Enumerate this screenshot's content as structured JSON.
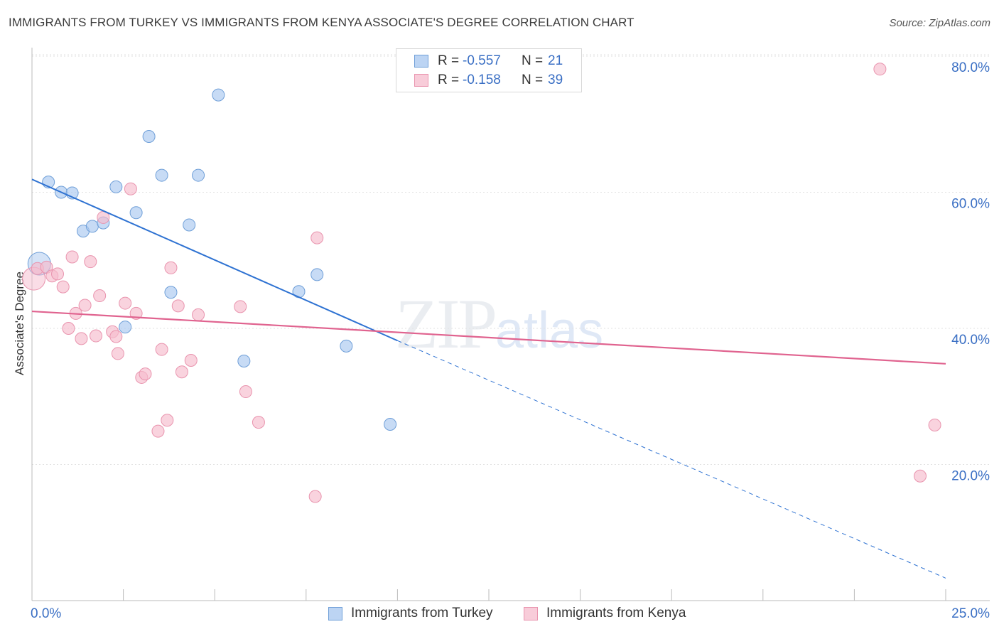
{
  "header": {
    "title": "IMMIGRANTS FROM TURKEY VS IMMIGRANTS FROM KENYA ASSOCIATE'S DEGREE CORRELATION CHART",
    "source": "Source: ZipAtlas.com"
  },
  "watermark": {
    "zip": "ZIP",
    "atlas": "atlas"
  },
  "legend_top": {
    "rows": [
      {
        "r_label": "R =",
        "r_value": "-0.557",
        "n_label": "N =",
        "n_value": "21"
      },
      {
        "r_label": "R =",
        "r_value": "-0.158",
        "n_label": "N =",
        "n_value": "39"
      }
    ]
  },
  "legend_bottom": {
    "items": [
      {
        "label": "Immigrants from Turkey"
      },
      {
        "label": "Immigrants from Kenya"
      }
    ]
  },
  "chart_data": {
    "type": "scatter",
    "title": "IMMIGRANTS FROM TURKEY VS IMMIGRANTS FROM KENYA ASSOCIATE'S DEGREE CORRELATION CHART",
    "xlabel": "",
    "ylabel": "Associate's Degree",
    "xlim": [
      0,
      25
    ],
    "ylim": [
      0,
      83
    ],
    "x_tick_labels": {
      "left": "0.0%",
      "right": "25.0%"
    },
    "y_ticks": [
      20,
      40,
      60,
      80
    ],
    "y_tick_labels": [
      "20.0%",
      "40.0%",
      "60.0%",
      "80.0%"
    ],
    "grid": true,
    "colors": {
      "turkey_fill": "#a9c8ef",
      "turkey_stroke": "#6f9fd8",
      "turkey_line": "#2e72d2",
      "kenya_fill": "#f6bccd",
      "kenya_stroke": "#e994ae",
      "kenya_line": "#e0638f",
      "tick_label": "#3a6fc4"
    },
    "series": [
      {
        "name": "Immigrants from Turkey",
        "points": [
          {
            "x": 0.2,
            "y": 49.5,
            "big": true
          },
          {
            "x": 0.45,
            "y": 61.5
          },
          {
            "x": 0.8,
            "y": 60.0
          },
          {
            "x": 1.1,
            "y": 59.9
          },
          {
            "x": 1.4,
            "y": 54.3
          },
          {
            "x": 1.65,
            "y": 55.0
          },
          {
            "x": 1.95,
            "y": 55.5
          },
          {
            "x": 2.3,
            "y": 60.8
          },
          {
            "x": 2.55,
            "y": 40.2
          },
          {
            "x": 2.85,
            "y": 57.0
          },
          {
            "x": 3.2,
            "y": 68.2
          },
          {
            "x": 3.55,
            "y": 62.5
          },
          {
            "x": 3.8,
            "y": 45.3
          },
          {
            "x": 4.3,
            "y": 55.2
          },
          {
            "x": 4.55,
            "y": 62.5
          },
          {
            "x": 5.1,
            "y": 74.3
          },
          {
            "x": 5.8,
            "y": 35.2
          },
          {
            "x": 7.3,
            "y": 45.4
          },
          {
            "x": 7.8,
            "y": 47.9
          },
          {
            "x": 8.6,
            "y": 37.4
          },
          {
            "x": 9.8,
            "y": 25.9
          }
        ],
        "trend": {
          "x1": 0,
          "y1": 61.9,
          "x2": 10.0,
          "y2": 38.2,
          "dash_to_x": 25.0,
          "dash_to_y": 3.3
        }
      },
      {
        "name": "Immigrants from Kenya",
        "points": [
          {
            "x": 0.05,
            "y": 47.3,
            "big": true
          },
          {
            "x": 0.15,
            "y": 48.8
          },
          {
            "x": 0.4,
            "y": 49.0
          },
          {
            "x": 0.55,
            "y": 47.7
          },
          {
            "x": 0.7,
            "y": 48.0
          },
          {
            "x": 0.85,
            "y": 46.1
          },
          {
            "x": 1.0,
            "y": 40.0
          },
          {
            "x": 1.2,
            "y": 42.2
          },
          {
            "x": 1.35,
            "y": 38.5
          },
          {
            "x": 1.45,
            "y": 43.4
          },
          {
            "x": 1.1,
            "y": 50.5
          },
          {
            "x": 1.6,
            "y": 49.8
          },
          {
            "x": 1.75,
            "y": 38.9
          },
          {
            "x": 1.85,
            "y": 44.8
          },
          {
            "x": 1.95,
            "y": 56.3
          },
          {
            "x": 2.2,
            "y": 39.5
          },
          {
            "x": 2.35,
            "y": 36.3
          },
          {
            "x": 2.55,
            "y": 43.7
          },
          {
            "x": 2.7,
            "y": 60.5
          },
          {
            "x": 2.85,
            "y": 42.2
          },
          {
            "x": 3.0,
            "y": 32.8
          },
          {
            "x": 3.1,
            "y": 33.3
          },
          {
            "x": 3.45,
            "y": 24.9
          },
          {
            "x": 3.55,
            "y": 36.9
          },
          {
            "x": 3.7,
            "y": 26.5
          },
          {
            "x": 3.8,
            "y": 48.9
          },
          {
            "x": 4.0,
            "y": 43.3
          },
          {
            "x": 4.1,
            "y": 33.6
          },
          {
            "x": 4.35,
            "y": 35.3
          },
          {
            "x": 4.55,
            "y": 42.0
          },
          {
            "x": 5.7,
            "y": 43.2
          },
          {
            "x": 5.85,
            "y": 30.7
          },
          {
            "x": 6.2,
            "y": 26.2
          },
          {
            "x": 7.8,
            "y": 53.3
          },
          {
            "x": 7.75,
            "y": 15.3
          },
          {
            "x": 2.3,
            "y": 38.8
          },
          {
            "x": 23.2,
            "y": 78.1
          },
          {
            "x": 24.3,
            "y": 18.3
          },
          {
            "x": 24.7,
            "y": 25.8
          }
        ],
        "trend": {
          "x1": 0,
          "y1": 42.5,
          "x2": 25.0,
          "y2": 34.8
        }
      }
    ]
  }
}
